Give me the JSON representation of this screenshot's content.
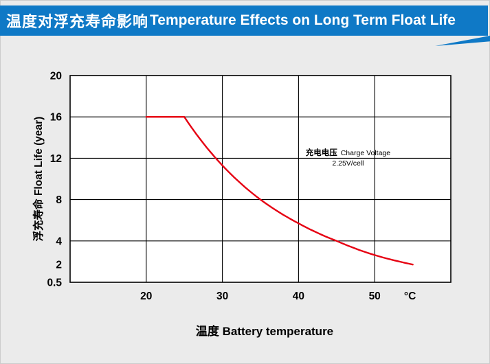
{
  "banner": {
    "title_cjk": "温度对浮充寿命影响",
    "title_en": "Temperature Effects on Long Term Float Life"
  },
  "colors": {
    "banner_blue": "#0f79c6",
    "curve_red": "#e60012",
    "page_background": "#ebebeb",
    "plot_background": "#ffffff",
    "grid_black": "#000000"
  },
  "chart_data": {
    "type": "line",
    "title": "温度对浮充寿命影响 Temperature Effects on Long Term Float Life",
    "xlabel": "温度  Battery temperature",
    "ylabel": "浮充寿命  Float Life (year)",
    "x_unit": "°C",
    "x_range": [
      10,
      60
    ],
    "x_ticks": [
      20,
      30,
      40,
      50
    ],
    "y_tick_labels": [
      "20",
      "16",
      "12",
      "8",
      "4",
      "2",
      "0.5"
    ],
    "y_band_values": [
      20,
      16,
      12,
      8,
      4,
      0.5
    ],
    "y_gridline_values": [
      16,
      12,
      8,
      4
    ],
    "grid": true,
    "legend": false,
    "annotation": {
      "cjk": "充电电压",
      "en": "Charge Voltage",
      "line2": "2.25V/cell"
    },
    "series": [
      {
        "name": "Float life vs battery temperature (2.25V/cell)",
        "color": "#e60012",
        "points": [
          [
            20,
            16
          ],
          [
            25,
            16
          ],
          [
            30,
            11.3
          ],
          [
            35,
            8
          ],
          [
            40,
            5.7
          ],
          [
            45,
            4
          ],
          [
            50,
            2.8
          ],
          [
            55,
            2
          ]
        ]
      }
    ]
  }
}
